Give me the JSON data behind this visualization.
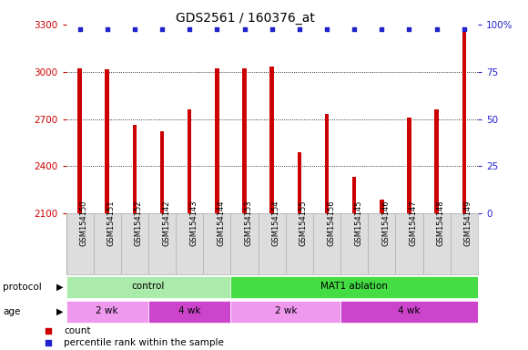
{
  "title": "GDS2561 / 160376_at",
  "samples": [
    "GSM154150",
    "GSM154151",
    "GSM154152",
    "GSM154142",
    "GSM154143",
    "GSM154144",
    "GSM154153",
    "GSM154154",
    "GSM154155",
    "GSM154156",
    "GSM154145",
    "GSM154146",
    "GSM154147",
    "GSM154148",
    "GSM154149"
  ],
  "bar_values": [
    3020,
    3015,
    2660,
    2620,
    2760,
    3020,
    3020,
    3035,
    2490,
    2730,
    2330,
    2190,
    2710,
    2760,
    3270
  ],
  "bar_color": "#cc0000",
  "percentile_color": "#2222cc",
  "ylim_left": [
    2100,
    3300
  ],
  "ylim_right": [
    0,
    100
  ],
  "yticks_left": [
    2100,
    2400,
    2700,
    3000,
    3300
  ],
  "yticks_right": [
    0,
    25,
    50,
    75,
    100
  ],
  "grid_lines": [
    2400,
    2700,
    3000
  ],
  "protocol_groups": [
    {
      "label": "control",
      "start": 0,
      "end": 6,
      "color": "#aaeaaa"
    },
    {
      "label": "MAT1 ablation",
      "start": 6,
      "end": 15,
      "color": "#44dd44"
    }
  ],
  "age_groups": [
    {
      "label": "2 wk",
      "start": 0,
      "end": 3,
      "color": "#ee99ee"
    },
    {
      "label": "4 wk",
      "start": 3,
      "end": 6,
      "color": "#cc44cc"
    },
    {
      "label": "2 wk",
      "start": 6,
      "end": 10,
      "color": "#ee99ee"
    },
    {
      "label": "4 wk",
      "start": 10,
      "end": 15,
      "color": "#cc44cc"
    }
  ],
  "legend_items": [
    {
      "label": "count",
      "color": "#cc0000"
    },
    {
      "label": "percentile rank within the sample",
      "color": "#2222cc"
    }
  ],
  "background_color": "#ffffff",
  "plot_bg_color": "#ffffff",
  "tick_color_left": "#cc0000",
  "tick_color_right": "#2222cc",
  "bar_width": 0.15,
  "title_fontsize": 10,
  "tick_fontsize": 7.5,
  "sample_fontsize": 6.0
}
